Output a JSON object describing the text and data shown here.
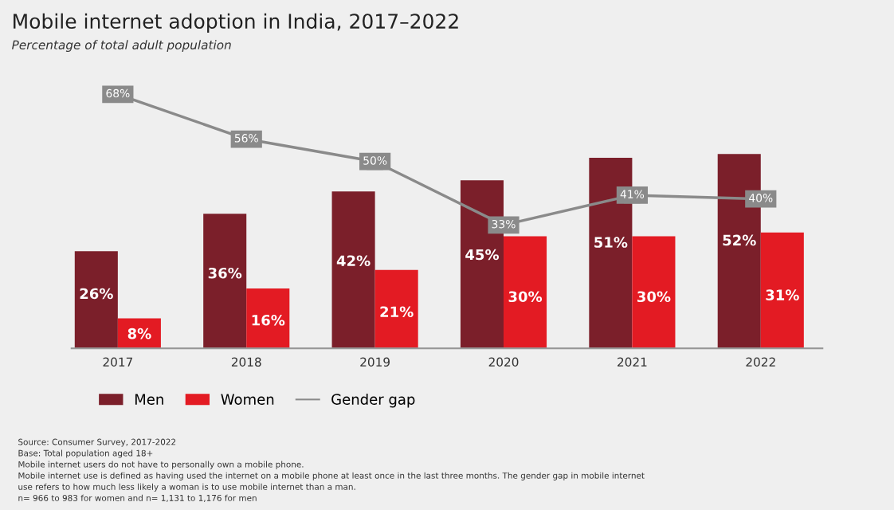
{
  "chart_data": {
    "type": "bar",
    "title": "Mobile internet adoption in India, 2017–2022",
    "subtitle": "Percentage of total adult population",
    "categories": [
      "2017",
      "2018",
      "2019",
      "2020",
      "2021",
      "2022"
    ],
    "series": [
      {
        "name": "Men",
        "color": "#7b1f2a",
        "values": [
          26,
          36,
          42,
          45,
          51,
          52
        ],
        "value_labels": [
          "26%",
          "36%",
          "42%",
          "45%",
          "51%",
          "52%"
        ]
      },
      {
        "name": "Women",
        "color": "#e31b23",
        "values": [
          8,
          16,
          21,
          30,
          30,
          31
        ],
        "value_labels": [
          "8%",
          "16%",
          "21%",
          "30%",
          "30%",
          "31%"
        ]
      },
      {
        "name": "Gender gap",
        "type": "line",
        "color": "#8a8a8a",
        "marker": "square",
        "values": [
          68,
          56,
          50,
          33,
          41,
          40
        ],
        "value_labels": [
          "68%",
          "56%",
          "50%",
          "33%",
          "41%",
          "40%"
        ]
      }
    ],
    "tick_labels": "x",
    "legend": "bottom",
    "grid": false,
    "annotations": [
      "Source: Consumer Survey, 2017-2022",
      "Base: Total population aged 18+",
      "Mobile internet users do not have to personally own a mobile phone.",
      "Mobile internet use is defined as having used the internet on a mobile phone at least once in the last three months. The gender gap in mobile internet",
      "use refers to how much less likely a woman is to use mobile internet than a man.",
      "n= 966 to 983 for women and n= 1,131 to 1,176 for men"
    ]
  }
}
